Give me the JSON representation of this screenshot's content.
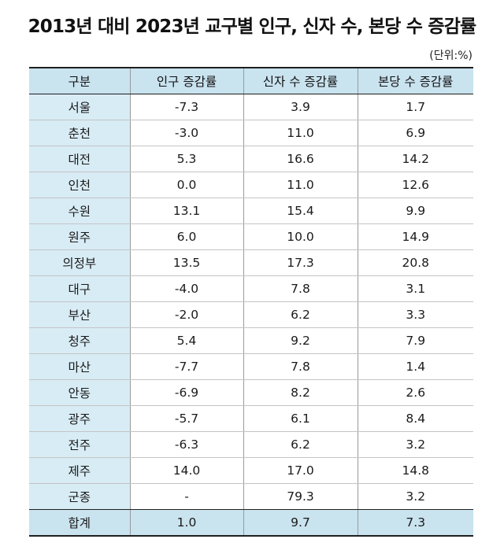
{
  "title": "2013년 대비 2023년 교구별 인구, 신자 수, 본당 수 증감률",
  "unit": "(단위:%)",
  "columns": [
    "구분",
    "인구 증감률",
    "신자 수 증감률",
    "본당 수 증감률"
  ],
  "rows": [
    {
      "region": "서울",
      "population": "-7.3",
      "believers": "3.9",
      "parishes": "1.7"
    },
    {
      "region": "춘천",
      "population": "-3.0",
      "believers": "11.0",
      "parishes": "6.9"
    },
    {
      "region": "대전",
      "population": "5.3",
      "believers": "16.6",
      "parishes": "14.2"
    },
    {
      "region": "인천",
      "population": "0.0",
      "believers": "11.0",
      "parishes": "12.6"
    },
    {
      "region": "수원",
      "population": "13.1",
      "believers": "15.4",
      "parishes": "9.9"
    },
    {
      "region": "원주",
      "population": "6.0",
      "believers": "10.0",
      "parishes": "14.9"
    },
    {
      "region": "의정부",
      "population": "13.5",
      "believers": "17.3",
      "parishes": "20.8"
    },
    {
      "region": "대구",
      "population": "-4.0",
      "believers": "7.8",
      "parishes": "3.1"
    },
    {
      "region": "부산",
      "population": "-2.0",
      "believers": "6.2",
      "parishes": "3.3"
    },
    {
      "region": "청주",
      "population": "5.4",
      "believers": "9.2",
      "parishes": "7.9"
    },
    {
      "region": "마산",
      "population": "-7.7",
      "believers": "7.8",
      "parishes": "1.4"
    },
    {
      "region": "안동",
      "population": "-6.9",
      "believers": "8.2",
      "parishes": "2.6"
    },
    {
      "region": "광주",
      "population": "-5.7",
      "believers": "6.1",
      "parishes": "8.4"
    },
    {
      "region": "전주",
      "population": "-6.3",
      "believers": "6.2",
      "parishes": "3.2"
    },
    {
      "region": "제주",
      "population": "14.0",
      "believers": "17.0",
      "parishes": "14.8"
    },
    {
      "region": "군종",
      "population": "-",
      "believers": "79.3",
      "parishes": "3.2"
    }
  ],
  "total": {
    "region": "합계",
    "population": "1.0",
    "believers": "9.7",
    "parishes": "7.3"
  },
  "colors": {
    "header_bg": "#c9e3ef",
    "region_bg": "#d8ecf5",
    "rule": "#1f1f1f"
  }
}
